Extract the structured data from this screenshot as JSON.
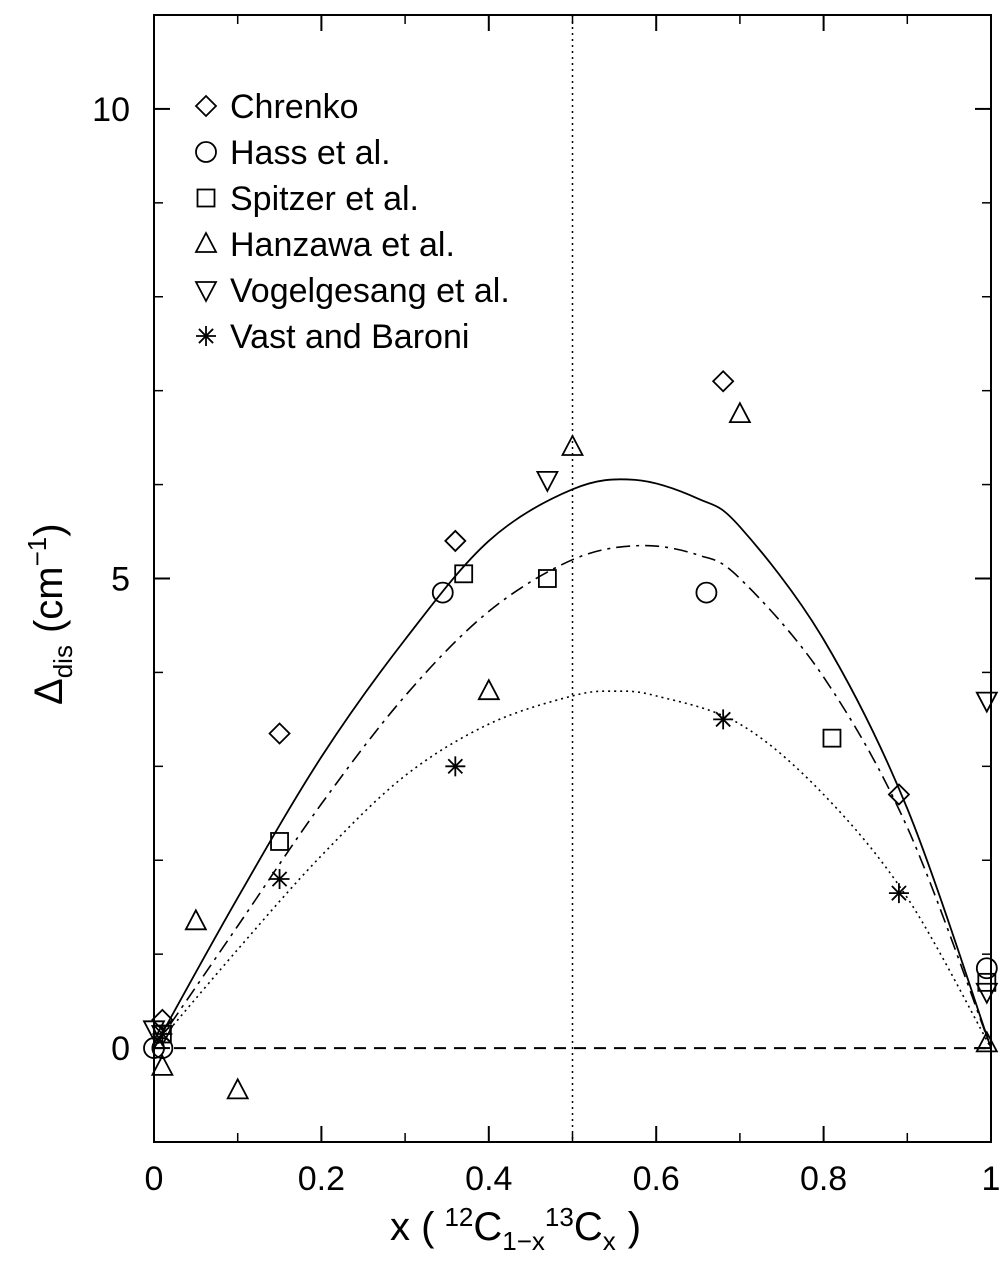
{
  "chart_data": {
    "type": "scatter",
    "title": "",
    "xlabel": {
      "prefix": "x (",
      "iso1_mass": "12",
      "iso1_symbol": "C",
      "iso1_sub": "1−x",
      "iso2_mass": "13",
      "iso2_symbol": "C",
      "iso2_sub": "x",
      "suffix": ")"
    },
    "ylabel": {
      "symbol": "Δ",
      "sub": "dis",
      "unit_open": "(cm",
      "unit_sup": "−1",
      "unit_close": ")"
    },
    "xlim": [
      0,
      1
    ],
    "ylim": [
      -1,
      11
    ],
    "x_ticks": [
      0,
      0.2,
      0.4,
      0.6,
      0.8,
      1
    ],
    "x_tick_labels": [
      "0",
      "0.2",
      "0.4",
      "0.6",
      "0.8",
      "1"
    ],
    "y_ticks": [
      0,
      5,
      10
    ],
    "y_tick_labels": [
      "0",
      "5",
      "10"
    ],
    "grid": false,
    "legend_position": "top-left",
    "reference_lines": [
      {
        "orientation": "horizontal",
        "value": 0,
        "style": "dashed"
      },
      {
        "orientation": "vertical",
        "value": 0.5,
        "style": "dotted"
      }
    ],
    "series": [
      {
        "name": "Chrenko",
        "marker": "diamond",
        "points": [
          [
            0.01,
            0.3
          ],
          [
            0.15,
            3.35
          ],
          [
            0.36,
            5.4
          ],
          [
            0.68,
            7.1
          ],
          [
            0.89,
            2.7
          ]
        ]
      },
      {
        "name": "Hass et al.",
        "marker": "circle",
        "points": [
          [
            0.0,
            0.0
          ],
          [
            0.01,
            0.0
          ],
          [
            0.345,
            4.85
          ],
          [
            0.66,
            4.85
          ],
          [
            0.995,
            0.85
          ]
        ]
      },
      {
        "name": "Spitzer et al.",
        "marker": "square",
        "points": [
          [
            0.01,
            0.15
          ],
          [
            0.15,
            2.2
          ],
          [
            0.37,
            5.05
          ],
          [
            0.47,
            5.0
          ],
          [
            0.81,
            3.3
          ],
          [
            0.995,
            0.7
          ]
        ]
      },
      {
        "name": "Hanzawa et al.",
        "marker": "triangle-up",
        "points": [
          [
            0.01,
            -0.2
          ],
          [
            0.05,
            1.35
          ],
          [
            0.1,
            -0.45
          ],
          [
            0.4,
            3.8
          ],
          [
            0.5,
            6.4
          ],
          [
            0.7,
            6.75
          ],
          [
            0.995,
            0.05
          ]
        ]
      },
      {
        "name": "Vogelgesang et al.",
        "marker": "triangle-down",
        "points": [
          [
            0.0,
            0.2
          ],
          [
            0.01,
            0.15
          ],
          [
            0.47,
            6.05
          ],
          [
            0.995,
            0.6
          ],
          [
            0.995,
            3.7
          ]
        ]
      },
      {
        "name": "Vast and Baroni",
        "marker": "asterisk",
        "points": [
          [
            0.01,
            0.15
          ],
          [
            0.15,
            1.8
          ],
          [
            0.36,
            3.0
          ],
          [
            0.68,
            3.5
          ],
          [
            0.89,
            1.65
          ]
        ]
      }
    ],
    "curves": [
      {
        "style": "solid",
        "points": [
          [
            0.0,
            0.0
          ],
          [
            0.1,
            1.6
          ],
          [
            0.2,
            3.1
          ],
          [
            0.3,
            4.35
          ],
          [
            0.4,
            5.4
          ],
          [
            0.5,
            5.95
          ],
          [
            0.575,
            6.05
          ],
          [
            0.65,
            5.85
          ],
          [
            0.7,
            5.55
          ],
          [
            0.8,
            4.35
          ],
          [
            0.9,
            2.55
          ],
          [
            1.0,
            0.0
          ]
        ]
      },
      {
        "style": "dash-dot",
        "points": [
          [
            0.0,
            0.0
          ],
          [
            0.1,
            1.3
          ],
          [
            0.2,
            2.6
          ],
          [
            0.3,
            3.75
          ],
          [
            0.4,
            4.65
          ],
          [
            0.5,
            5.2
          ],
          [
            0.58,
            5.35
          ],
          [
            0.65,
            5.25
          ],
          [
            0.7,
            5.0
          ],
          [
            0.8,
            3.95
          ],
          [
            0.9,
            2.35
          ],
          [
            1.0,
            0.0
          ]
        ]
      },
      {
        "style": "dotted",
        "points": [
          [
            0.0,
            0.0
          ],
          [
            0.1,
            1.05
          ],
          [
            0.2,
            2.05
          ],
          [
            0.3,
            2.9
          ],
          [
            0.4,
            3.45
          ],
          [
            0.5,
            3.75
          ],
          [
            0.55,
            3.8
          ],
          [
            0.6,
            3.75
          ],
          [
            0.7,
            3.45
          ],
          [
            0.8,
            2.7
          ],
          [
            0.9,
            1.6
          ],
          [
            1.0,
            0.0
          ]
        ]
      }
    ]
  }
}
